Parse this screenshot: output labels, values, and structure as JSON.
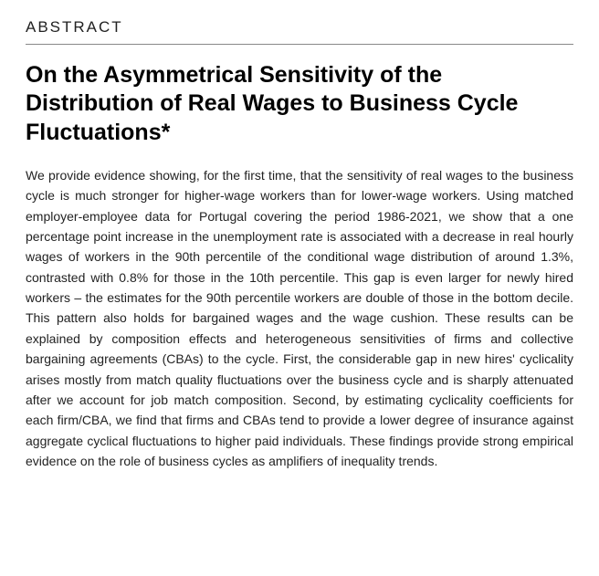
{
  "section": {
    "label": "ABSTRACT"
  },
  "paper": {
    "title": "On the Asymmetrical Sensitivity of the Distribution of Real Wages to Business Cycle Fluctuations*",
    "abstract": "We provide evidence showing, for the first time, that the sensitivity of real wages to the business cycle is much stronger for higher-wage workers than for lower-wage workers. Using matched employer-employee data for Portugal covering the period 1986-2021, we show that a one percentage point increase in the unemployment rate is associated with a decrease in real hourly wages of workers in the 90th percentile of the conditional wage distribution of around 1.3%, contrasted with 0.8% for those in the 10th percentile. This gap is even larger for newly hired workers – the estimates for the 90th percentile workers are double of those in the bottom decile. This pattern also holds for bargained wages and the wage cushion. These results can be explained by composition effects and heterogeneous sensitivities of firms and collective bargaining agreements (CBAs) to the cycle. First, the considerable gap in new hires' cyclicality arises mostly from match quality fluctuations over the business cycle and is sharply attenuated after we account for job match composition. Second, by estimating cyclicality coefficients for each firm/CBA, we find that firms and CBAs tend to provide a lower degree of insurance against aggregate cyclical fluctuations to higher paid individuals. These findings provide strong empirical evidence on the role of business cycles as amplifiers of inequality trends."
  }
}
